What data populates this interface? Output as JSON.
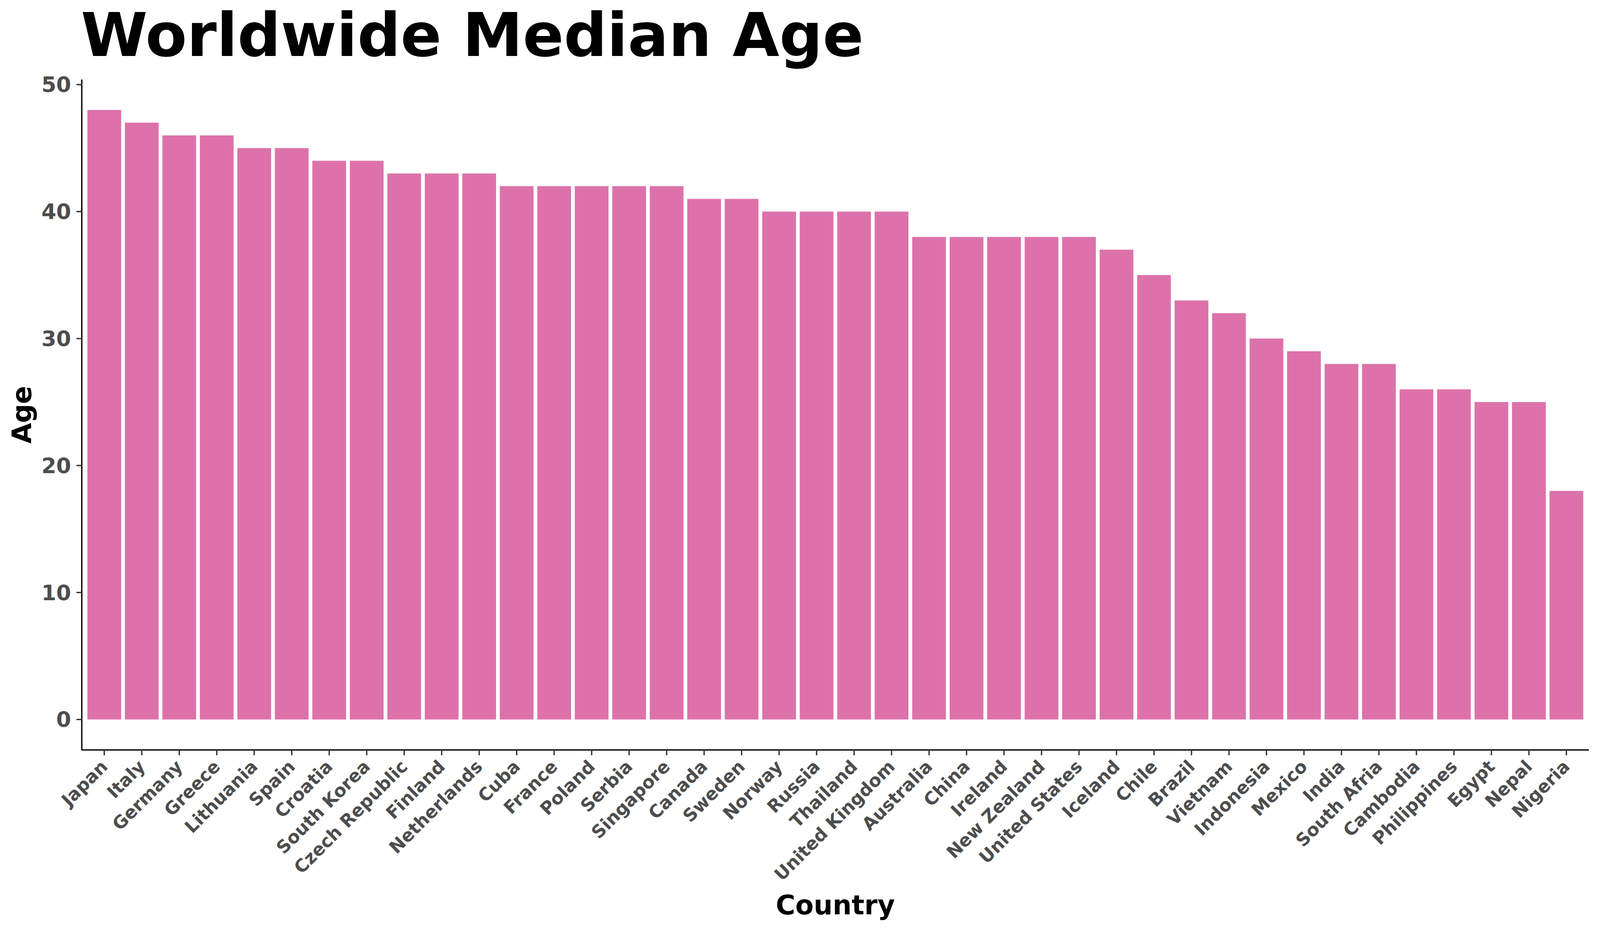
{
  "chart_data": {
    "type": "bar",
    "title": "Worldwide Median Age",
    "x_label": "Country",
    "y_label": "Age",
    "categories": [
      "Japan",
      "Italy",
      "Germany",
      "Greece",
      "Lithuania",
      "Spain",
      "Croatia",
      "South Korea",
      "Czech Republic",
      "Finland",
      "Netherlands",
      "Cuba",
      "France",
      "Poland",
      "Serbia",
      "Singapore",
      "Canada",
      "Sweden",
      "Norway",
      "Russia",
      "Thailand",
      "United Kingdom",
      "Australia",
      "China",
      "Ireland",
      "New Zealand",
      "United States",
      "Iceland",
      "Chile",
      "Brazil",
      "Vietnam",
      "Indonesia",
      "Mexico",
      "India",
      "South Afria",
      "Cambodia",
      "Philippines",
      "Egypt",
      "Nepal",
      "Nigeria"
    ],
    "values": [
      48,
      47,
      46,
      46,
      45,
      45,
      44,
      44,
      43,
      43,
      43,
      42,
      42,
      42,
      42,
      42,
      41,
      41,
      40,
      40,
      40,
      40,
      38,
      38,
      38,
      38,
      38,
      37,
      35,
      33,
      32,
      30,
      29,
      28,
      28,
      26,
      26,
      25,
      25,
      18
    ],
    "color": "#dd72aa",
    "ylim": [
      -2.4,
      50.4
    ],
    "yticks": [
      0,
      10,
      20,
      30,
      40,
      50
    ],
    "grid": false
  }
}
